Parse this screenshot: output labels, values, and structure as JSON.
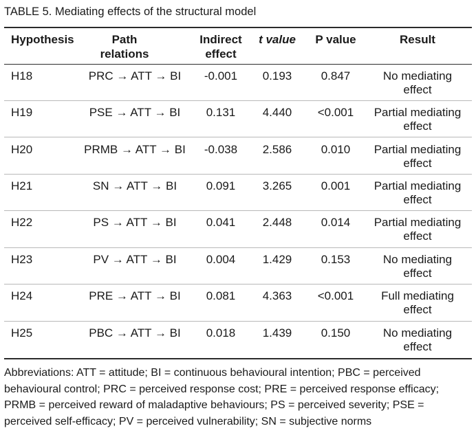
{
  "table": {
    "caption": "TABLE 5.  Mediating effects of the structural model",
    "headers": {
      "hypothesis": "Hypothesis",
      "path_line1": "Path",
      "path_line2": "relations",
      "indirect_line1": "Indirect",
      "indirect_line2": "effect",
      "t_value": "t value",
      "p_value": "P value",
      "result": "Result"
    },
    "rows": [
      {
        "hypothesis": "H18",
        "path": "PRC → ATT → BI",
        "indirect": "-0.001",
        "t": "0.193",
        "p": "0.847",
        "result1": "No mediating",
        "result2": "effect"
      },
      {
        "hypothesis": "H19",
        "path": "PSE → ATT → BI",
        "indirect": "0.131",
        "t": "4.440",
        "p": "<0.001",
        "result1": "Partial mediating",
        "result2": "effect"
      },
      {
        "hypothesis": "H20",
        "path": "PRMB → ATT → BI",
        "indirect": "-0.038",
        "t": "2.586",
        "p": "0.010",
        "result1": "Partial mediating",
        "result2": "effect"
      },
      {
        "hypothesis": "H21",
        "path": "SN → ATT → BI",
        "indirect": "0.091",
        "t": "3.265",
        "p": "0.001",
        "result1": "Partial mediating",
        "result2": "effect"
      },
      {
        "hypothesis": "H22",
        "path": "PS → ATT → BI",
        "indirect": "0.041",
        "t": "2.448",
        "p": "0.014",
        "result1": "Partial mediating",
        "result2": "effect"
      },
      {
        "hypothesis": "H23",
        "path": "PV → ATT → BI",
        "indirect": "0.004",
        "t": "1.429",
        "p": "0.153",
        "result1": "No mediating",
        "result2": "effect"
      },
      {
        "hypothesis": "H24",
        "path": "PRE → ATT → BI",
        "indirect": "0.081",
        "t": "4.363",
        "p": "<0.001",
        "result1": "Full mediating",
        "result2": "effect"
      },
      {
        "hypothesis": "H25",
        "path": "PBC → ATT → BI",
        "indirect": "0.018",
        "t": "1.439",
        "p": "0.150",
        "result1": "No mediating",
        "result2": "effect"
      }
    ],
    "footnote": {
      "line1": "Abbreviations: ATT = attitude; BI = continuous behavioural intention; PBC = perceived",
      "line2": "behavioural control; PRC = perceived response cost; PRE = perceived response efficacy;",
      "line3": "PRMB = perceived reward of maladaptive behaviours; PS = perceived severity; PSE =",
      "line4": "perceived self-efficacy; PV = perceived vulnerability; SN = subjective norms"
    }
  }
}
